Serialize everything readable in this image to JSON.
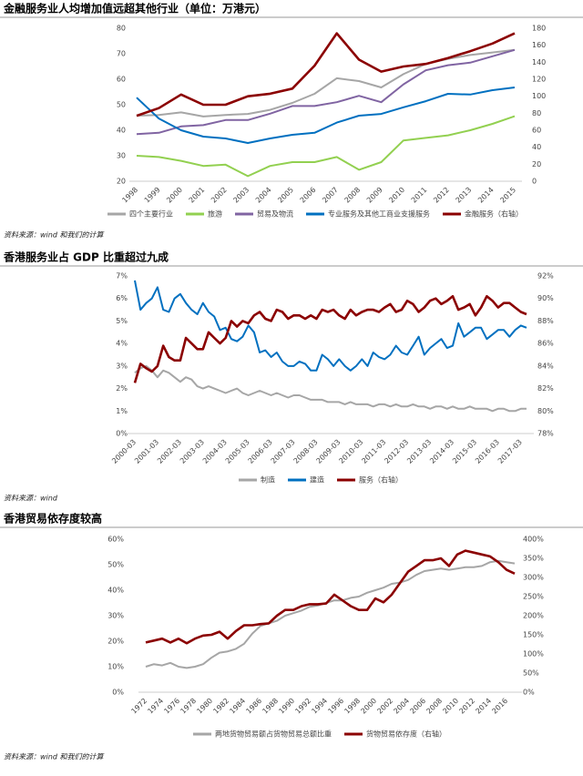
{
  "chart_data": [
    {
      "type": "line",
      "title": "金融服务业人均增加值远超其他行业（单位：万港元）",
      "source": "资料来源：wind 和我们的计算",
      "categories": [
        "1998",
        "1999",
        "2000",
        "2001",
        "2002",
        "2003",
        "2004",
        "2005",
        "2006",
        "2007",
        "2008",
        "2009",
        "2010",
        "2011",
        "2012",
        "2013",
        "2014",
        "2015"
      ],
      "ylim": [
        20,
        80
      ],
      "yticks": [
        20,
        30,
        40,
        50,
        60,
        70,
        80
      ],
      "y2lim": [
        0,
        180
      ],
      "y2ticks": [
        0,
        20,
        40,
        60,
        80,
        100,
        120,
        140,
        160,
        180
      ],
      "grid": false,
      "series": [
        {
          "name": "四个主要行业",
          "color": "#a6a6a6",
          "values": [
            45.7,
            46,
            47,
            45.4,
            46,
            46.4,
            48,
            50.7,
            54.3,
            60.4,
            59.3,
            56.8,
            62,
            66,
            68,
            69.5,
            70.5,
            71.5
          ]
        },
        {
          "name": "旅游",
          "color": "#92d050",
          "values": [
            30,
            29.5,
            28,
            26,
            26.5,
            22,
            26,
            27.5,
            27.5,
            29.5,
            24.5,
            27.5,
            36,
            37,
            38,
            40,
            42.5,
            45.5
          ]
        },
        {
          "name": "贸易及物流",
          "color": "#8064a2",
          "values": [
            38.5,
            39,
            41.5,
            42,
            44,
            44,
            46.5,
            49.5,
            49.5,
            51,
            53.5,
            51,
            58,
            63.5,
            65.5,
            66.5,
            69,
            71.5
          ]
        },
        {
          "name": "专业服务及其他工商业支援服务",
          "color": "#0070c0",
          "values": [
            52.8,
            44.6,
            40,
            37.5,
            36.8,
            35,
            36.8,
            38.2,
            39,
            43,
            45.7,
            46.4,
            49,
            51.4,
            54.3,
            54,
            55.7,
            56.8
          ]
        },
        {
          "name": "金融服务（右轴）",
          "color": "#8b0000",
          "axis": "y2",
          "values": [
            77,
            86,
            102,
            90,
            90,
            100,
            103,
            109,
            136,
            174,
            143,
            129,
            135,
            138,
            145,
            153,
            162,
            174
          ]
        }
      ]
    },
    {
      "type": "line",
      "title": "香港服务业占 GDP 比重超过九成",
      "source": "资料来源：wind",
      "categories": [
        "2000-03",
        null,
        null,
        null,
        "2001-03",
        null,
        null,
        null,
        "2002-03",
        null,
        null,
        null,
        "2003-03",
        null,
        null,
        null,
        "2004-03",
        null,
        null,
        null,
        "2005-03",
        null,
        null,
        null,
        "2006-03",
        null,
        null,
        null,
        "2007-03",
        null,
        null,
        null,
        "2008-03",
        null,
        null,
        null,
        "2009-03",
        null,
        null,
        null,
        "2010-03",
        null,
        null,
        null,
        "2011-03",
        null,
        null,
        null,
        "2012-03",
        null,
        null,
        null,
        "2013-03",
        null,
        null,
        null,
        "2014-03",
        null,
        null,
        null,
        "2015-03",
        null,
        null,
        null,
        "2016-03",
        null,
        null,
        null,
        "2017-03",
        null
      ],
      "ylim": [
        0,
        7
      ],
      "yticks": [
        {
          "value": 0,
          "label": "0%"
        },
        {
          "value": 1,
          "label": "1%"
        },
        {
          "value": 2,
          "label": "2%"
        },
        {
          "value": 3,
          "label": "3%"
        },
        {
          "value": 4,
          "label": "4%"
        },
        {
          "value": 5,
          "label": "5%"
        },
        {
          "value": 6,
          "label": "6%"
        },
        {
          "value": 7,
          "label": "7%"
        }
      ],
      "y2lim": [
        78,
        92
      ],
      "y2ticks": [
        {
          "value": 78,
          "label": "78%"
        },
        {
          "value": 80,
          "label": "80%"
        },
        {
          "value": 82,
          "label": "82%"
        },
        {
          "value": 84,
          "label": "84%"
        },
        {
          "value": 86,
          "label": "86%"
        },
        {
          "value": 88,
          "label": "88%"
        },
        {
          "value": 90,
          "label": "90%"
        },
        {
          "value": 92,
          "label": "92%"
        }
      ],
      "grid": false,
      "series": [
        {
          "name": "制造",
          "color": "#a6a6a6",
          "values": [
            2.7,
            2.9,
            3.0,
            2.8,
            2.5,
            2.8,
            2.7,
            2.5,
            2.3,
            2.5,
            2.4,
            2.1,
            2.0,
            2.1,
            2.0,
            1.9,
            1.8,
            1.9,
            2.0,
            1.8,
            1.7,
            1.8,
            1.9,
            1.8,
            1.7,
            1.8,
            1.7,
            1.6,
            1.7,
            1.7,
            1.6,
            1.5,
            1.5,
            1.5,
            1.4,
            1.4,
            1.4,
            1.3,
            1.4,
            1.3,
            1.3,
            1.3,
            1.2,
            1.3,
            1.3,
            1.2,
            1.3,
            1.2,
            1.2,
            1.3,
            1.2,
            1.2,
            1.1,
            1.2,
            1.2,
            1.1,
            1.2,
            1.1,
            1.1,
            1.2,
            1.1,
            1.1,
            1.1,
            1.0,
            1.1,
            1.1,
            1.0,
            1.0,
            1.1,
            1.1
          ]
        },
        {
          "name": "建造",
          "color": "#0070c0",
          "values": [
            6.8,
            5.5,
            5.8,
            6.0,
            6.5,
            5.5,
            5.4,
            6.0,
            6.2,
            5.8,
            5.5,
            5.3,
            5.8,
            5.4,
            5.2,
            4.6,
            4.7,
            4.2,
            4.1,
            4.3,
            4.8,
            4.5,
            3.6,
            3.7,
            3.4,
            3.6,
            3.2,
            3.0,
            3.0,
            3.2,
            3.1,
            2.8,
            2.8,
            3.5,
            3.3,
            3.0,
            3.3,
            3.0,
            2.8,
            3.0,
            3.3,
            3.0,
            3.6,
            3.4,
            3.3,
            3.5,
            3.9,
            3.6,
            3.5,
            3.9,
            4.3,
            3.5,
            3.8,
            4.0,
            4.2,
            3.8,
            3.9,
            4.9,
            4.3,
            4.5,
            4.7,
            4.7,
            4.2,
            4.4,
            4.6,
            4.6,
            4.3,
            4.6,
            4.8,
            4.7
          ]
        },
        {
          "name": "服务（右轴）",
          "color": "#8b0000",
          "axis": "y2",
          "values": [
            82.5,
            84.2,
            83.8,
            83.5,
            84.0,
            85.8,
            84.8,
            84.5,
            84.5,
            86.5,
            86.0,
            85.5,
            85.5,
            87.0,
            86.5,
            86.0,
            86.5,
            88.0,
            87.5,
            88.0,
            87.8,
            88.5,
            88.8,
            88.2,
            88.0,
            89.0,
            88.8,
            88.2,
            88.5,
            88.5,
            88.2,
            88.5,
            88.2,
            89.0,
            88.8,
            89.0,
            88.5,
            88.2,
            89.0,
            88.5,
            88.8,
            89.0,
            89.0,
            88.8,
            89.2,
            89.5,
            88.8,
            89.0,
            89.8,
            89.5,
            88.8,
            89.2,
            89.8,
            90.0,
            89.5,
            89.8,
            90.2,
            89.0,
            89.2,
            89.5,
            88.5,
            89.2,
            90.2,
            89.8,
            89.2,
            89.6,
            89.6,
            89.2,
            88.8,
            88.6
          ]
        }
      ]
    },
    {
      "type": "line",
      "title": "香港贸易依存度较高",
      "source": "资料来源：wind 和我们的计算",
      "categories": [
        "1972",
        null,
        "1974",
        null,
        "1976",
        null,
        "1978",
        null,
        "1980",
        null,
        "1982",
        null,
        "1984",
        null,
        "1986",
        null,
        "1988",
        null,
        "1990",
        null,
        "1992",
        null,
        "1994",
        null,
        "1996",
        null,
        "1998",
        null,
        "2000",
        null,
        "2002",
        null,
        "2004",
        null,
        "2006",
        null,
        "2008",
        null,
        "2010",
        null,
        "2012",
        null,
        "2014",
        null,
        "2016",
        null
      ],
      "ylim": [
        0,
        60
      ],
      "yticks": [
        {
          "value": 0,
          "label": "0%"
        },
        {
          "value": 10,
          "label": "10%"
        },
        {
          "value": 20,
          "label": "20%"
        },
        {
          "value": 30,
          "label": "30%"
        },
        {
          "value": 40,
          "label": "40%"
        },
        {
          "value": 50,
          "label": "50%"
        },
        {
          "value": 60,
          "label": "60%"
        }
      ],
      "y2lim": [
        0,
        400
      ],
      "y2ticks": [
        {
          "value": 0,
          "label": "0%"
        },
        {
          "value": 50,
          "label": "50%"
        },
        {
          "value": 100,
          "label": "100%"
        },
        {
          "value": 150,
          "label": "150%"
        },
        {
          "value": 200,
          "label": "200%"
        },
        {
          "value": 250,
          "label": "250%"
        },
        {
          "value": 300,
          "label": "300%"
        },
        {
          "value": 350,
          "label": "350%"
        },
        {
          "value": 400,
          "label": "400%"
        }
      ],
      "grid": false,
      "series": [
        {
          "name": "两地货物贸易额占货物贸易总额比重",
          "color": "#a6a6a6",
          "values": [
            10,
            11,
            10.5,
            11.5,
            10,
            9.5,
            10,
            11,
            13.5,
            15.5,
            16,
            17,
            19,
            23,
            26,
            27,
            28,
            30,
            31,
            32,
            33.5,
            34,
            35,
            36,
            36,
            37,
            37.5,
            39,
            40,
            41,
            42.5,
            43,
            44,
            46,
            47.5,
            48,
            48.5,
            48,
            48.5,
            49,
            49,
            49.5,
            51,
            51.5,
            51,
            50.5
          ]
        },
        {
          "name": "货物贸易依存度（右轴）",
          "color": "#8b0000",
          "axis": "y2",
          "values": [
            130,
            135,
            140,
            130,
            140,
            128,
            140,
            148,
            150,
            158,
            140,
            160,
            175,
            175,
            178,
            180,
            200,
            215,
            215,
            225,
            230,
            230,
            232,
            255,
            240,
            225,
            215,
            215,
            245,
            235,
            255,
            285,
            315,
            330,
            345,
            345,
            350,
            330,
            360,
            370,
            365,
            360,
            355,
            340,
            320,
            310
          ]
        }
      ]
    }
  ]
}
